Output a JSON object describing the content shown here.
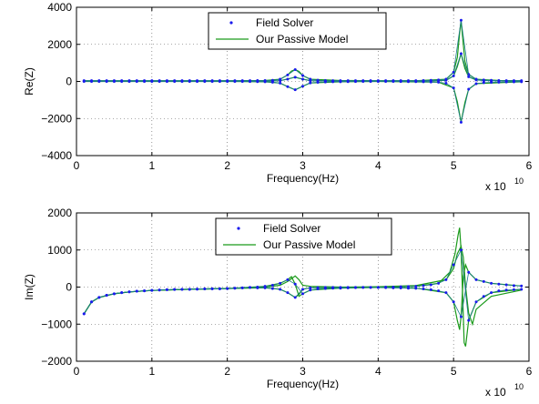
{
  "chart_data": [
    {
      "type": "line",
      "title": "",
      "xlabel": "Frequency(Hz)",
      "ylabel": "Re(Z)",
      "x_multiplier_label": "x 10",
      "x_multiplier_exp": "10",
      "xlim": [
        0,
        6
      ],
      "ylim": [
        -4000,
        4000
      ],
      "xticks": [
        "0",
        "1",
        "2",
        "3",
        "4",
        "5",
        "6"
      ],
      "yticks": [
        "−4000",
        "−2000",
        "0",
        "2000",
        "4000"
      ],
      "grid": true,
      "legend_position": "top-center",
      "legend": [
        "Field Solver",
        "Our Passive Model"
      ],
      "series": [
        {
          "name": "Our Passive Model",
          "color": "#1a9a1a",
          "x": [
            0.1,
            0.5,
            1,
            1.5,
            2,
            2.5,
            2.7,
            2.8,
            2.85,
            2.9,
            2.95,
            3.0,
            3.1,
            3.5,
            4,
            4.5,
            4.9,
            5.0,
            5.05,
            5.08,
            5.1,
            5.12,
            5.15,
            5.2,
            5.3,
            5.6,
            5.9
          ],
          "y": [
            40,
            40,
            40,
            40,
            40,
            50,
            120,
            350,
            560,
            640,
            540,
            320,
            120,
            50,
            40,
            40,
            120,
            500,
            1300,
            2600,
            3300,
            2400,
            1100,
            380,
            120,
            50,
            40
          ]
        },
        {
          "name": "",
          "color": "#1a9a1a",
          "x": [
            0.1,
            1,
            2,
            2.5,
            2.7,
            2.8,
            2.9,
            3.0,
            3.1,
            3.5,
            4,
            4.8,
            5.0,
            5.05,
            5.1,
            5.15,
            5.2,
            5.3,
            5.9
          ],
          "y": [
            0,
            0,
            0,
            -20,
            -90,
            -280,
            -450,
            -260,
            -80,
            -20,
            0,
            -40,
            -350,
            -1100,
            -2200,
            -1150,
            -420,
            -120,
            -20
          ]
        },
        {
          "name": "",
          "color": "#1a9a1a",
          "x": [
            0.1,
            1,
            2,
            2.7,
            2.85,
            2.9,
            2.95,
            3.1,
            4,
            4.9,
            5.0,
            5.05,
            5.1,
            5.15,
            5.2,
            5.3,
            5.9
          ],
          "y": [
            10,
            10,
            10,
            40,
            180,
            230,
            170,
            40,
            10,
            60,
            300,
            800,
            1500,
            700,
            250,
            80,
            10
          ]
        },
        {
          "name": "Field Solver",
          "color": "#1a1aee",
          "x": [
            0.1,
            0.2,
            0.3,
            0.4,
            0.5,
            0.6,
            0.7,
            0.8,
            0.9,
            1.0,
            1.1,
            1.2,
            1.3,
            1.4,
            1.5,
            1.6,
            1.7,
            1.8,
            1.9,
            2.0,
            2.1,
            2.2,
            2.3,
            2.4,
            2.5,
            2.6,
            2.7,
            2.8,
            2.9,
            3.0,
            3.1,
            3.2,
            3.3,
            3.4,
            3.5,
            3.6,
            3.7,
            3.8,
            3.9,
            4.0,
            4.1,
            4.2,
            4.3,
            4.4,
            4.5,
            4.6,
            4.7,
            4.8,
            4.9,
            5.0,
            5.1,
            5.2,
            5.3,
            5.4,
            5.5,
            5.6,
            5.7,
            5.8,
            5.9
          ],
          "y": [
            40,
            40,
            40,
            40,
            40,
            40,
            40,
            40,
            40,
            40,
            40,
            40,
            40,
            40,
            40,
            40,
            40,
            40,
            40,
            40,
            40,
            45,
            45,
            50,
            50,
            60,
            120,
            350,
            640,
            320,
            120,
            70,
            50,
            45,
            45,
            40,
            40,
            40,
            40,
            40,
            40,
            40,
            40,
            40,
            40,
            50,
            60,
            80,
            120,
            500,
            3300,
            380,
            120,
            80,
            60,
            50,
            45,
            40,
            40
          ]
        },
        {
          "name": "",
          "color": "#1a1aee",
          "x": [
            0.1,
            0.2,
            0.3,
            0.4,
            0.5,
            0.6,
            0.7,
            0.8,
            0.9,
            1.0,
            1.1,
            1.2,
            1.3,
            1.4,
            1.5,
            1.6,
            1.7,
            1.8,
            1.9,
            2.0,
            2.1,
            2.2,
            2.3,
            2.4,
            2.5,
            2.6,
            2.7,
            2.8,
            2.9,
            3.0,
            3.1,
            3.2,
            3.3,
            3.4,
            3.5,
            3.6,
            3.7,
            3.8,
            3.9,
            4.0,
            4.1,
            4.2,
            4.3,
            4.4,
            4.5,
            4.6,
            4.7,
            4.8,
            4.9,
            5.0,
            5.1,
            5.2,
            5.3,
            5.4,
            5.5,
            5.6,
            5.7,
            5.8,
            5.9
          ],
          "y": [
            0,
            0,
            0,
            0,
            0,
            0,
            0,
            0,
            0,
            0,
            0,
            0,
            0,
            0,
            0,
            0,
            0,
            0,
            0,
            0,
            0,
            0,
            -5,
            -10,
            -20,
            -40,
            -90,
            -280,
            -450,
            -260,
            -80,
            -50,
            -30,
            -20,
            -20,
            -10,
            -5,
            0,
            0,
            0,
            0,
            0,
            -5,
            -10,
            -15,
            -20,
            -30,
            -40,
            -100,
            -350,
            -2200,
            -420,
            -120,
            -70,
            -50,
            -40,
            -30,
            -25,
            -20
          ]
        },
        {
          "name": "",
          "color": "#1a1aee",
          "x": [
            0.1,
            0.2,
            0.3,
            0.4,
            0.5,
            0.6,
            0.7,
            0.8,
            0.9,
            1.0,
            1.1,
            1.2,
            1.3,
            1.4,
            1.5,
            1.6,
            1.7,
            1.8,
            1.9,
            2.0,
            2.1,
            2.2,
            2.3,
            2.4,
            2.5,
            2.6,
            2.7,
            2.8,
            2.9,
            3.0,
            3.1,
            3.2,
            3.3,
            3.4,
            3.5,
            3.6,
            3.7,
            3.8,
            3.9,
            4.0,
            4.1,
            4.2,
            4.3,
            4.4,
            4.5,
            4.6,
            4.7,
            4.8,
            4.9,
            5.0,
            5.1,
            5.2,
            5.3,
            5.4,
            5.5,
            5.6,
            5.7,
            5.8,
            5.9
          ],
          "y": [
            10,
            10,
            10,
            10,
            10,
            10,
            10,
            10,
            10,
            10,
            10,
            10,
            10,
            10,
            10,
            10,
            10,
            10,
            10,
            10,
            10,
            10,
            15,
            15,
            20,
            25,
            40,
            120,
            230,
            120,
            40,
            25,
            20,
            15,
            15,
            10,
            10,
            10,
            10,
            10,
            10,
            10,
            10,
            15,
            15,
            20,
            25,
            35,
            60,
            300,
            1500,
            250,
            80,
            45,
            30,
            20,
            15,
            12,
            10
          ]
        }
      ]
    },
    {
      "type": "line",
      "title": "",
      "xlabel": "Frequency(Hz)",
      "ylabel": "Im(Z)",
      "x_multiplier_label": "x 10",
      "x_multiplier_exp": "10",
      "xlim": [
        0,
        6
      ],
      "ylim": [
        -2000,
        2000
      ],
      "xticks": [
        "0",
        "1",
        "2",
        "3",
        "4",
        "5",
        "6"
      ],
      "yticks": [
        "−2000",
        "−1000",
        "0",
        "1000",
        "2000"
      ],
      "grid": true,
      "legend_position": "top-center",
      "legend": [
        "Field Solver",
        "Our Passive Model"
      ],
      "series": [
        {
          "name": "Our Passive Model",
          "color": "#1a9a1a",
          "x": [
            0.1,
            0.2,
            0.3,
            0.5,
            0.7,
            1,
            1.5,
            2,
            2.5,
            2.7,
            2.8,
            2.85,
            2.9,
            2.95,
            3.0,
            3.1,
            3.5,
            4,
            4.5,
            4.8,
            4.95,
            5.02,
            5.06,
            5.08,
            5.1,
            5.12,
            5.14,
            5.16,
            5.2,
            5.3,
            5.5,
            5.9
          ],
          "y": [
            -720,
            -400,
            -280,
            -180,
            -130,
            -90,
            -60,
            -40,
            20,
            100,
            200,
            280,
            80,
            -250,
            -180,
            -80,
            -30,
            -10,
            20,
            100,
            400,
            900,
            1400,
            1600,
            1000,
            -200,
            -1500,
            -1600,
            -900,
            -400,
            -150,
            -60
          ]
        },
        {
          "name": "",
          "color": "#1a9a1a",
          "x": [
            0.1,
            0.2,
            0.3,
            0.5,
            0.7,
            1,
            1.5,
            2,
            2.5,
            2.7,
            2.8,
            2.9,
            2.95,
            3.0,
            3.1,
            3.5,
            4,
            4.5,
            4.9,
            5.0,
            5.05,
            5.1,
            5.13,
            5.16,
            5.2,
            5.25,
            5.3,
            5.5,
            5.9
          ],
          "y": [
            -720,
            -400,
            -280,
            -180,
            -130,
            -90,
            -60,
            -40,
            0,
            50,
            150,
            300,
            200,
            50,
            20,
            0,
            10,
            40,
            200,
            500,
            900,
            1100,
            800,
            0,
            -700,
            -1000,
            -600,
            -250,
            -80
          ]
        },
        {
          "name": "",
          "color": "#1a9a1a",
          "x": [
            0.1,
            0.2,
            0.3,
            0.5,
            0.7,
            1,
            1.5,
            2,
            2.5,
            2.7,
            2.8,
            2.9,
            2.95,
            3.0,
            3.1,
            3.5,
            4,
            4.5,
            4.9,
            5.0,
            5.05,
            5.08,
            5.1,
            5.13,
            5.16,
            5.2,
            5.3,
            5.5,
            5.9
          ],
          "y": [
            -720,
            -400,
            -280,
            -180,
            -130,
            -90,
            -60,
            -40,
            -20,
            -60,
            -150,
            -280,
            -200,
            -60,
            -20,
            -10,
            -10,
            -30,
            -150,
            -400,
            -900,
            -1150,
            -800,
            300,
            600,
            400,
            200,
            100,
            30
          ]
        },
        {
          "name": "Field Solver",
          "color": "#1a1aee",
          "x": [
            0.1,
            0.2,
            0.3,
            0.4,
            0.5,
            0.6,
            0.7,
            0.8,
            0.9,
            1.0,
            1.1,
            1.2,
            1.3,
            1.4,
            1.5,
            1.6,
            1.7,
            1.8,
            1.9,
            2.0,
            2.1,
            2.2,
            2.3,
            2.4,
            2.5,
            2.6,
            2.7,
            2.8,
            2.9,
            3.0,
            3.1,
            3.2,
            3.3,
            3.4,
            3.5,
            3.6,
            3.7,
            3.8,
            3.9,
            4.0,
            4.1,
            4.2,
            4.3,
            4.4,
            4.5,
            4.6,
            4.7,
            4.8,
            4.9,
            5.0,
            5.1,
            5.2,
            5.3,
            5.4,
            5.5,
            5.6,
            5.7,
            5.8,
            5.9
          ],
          "y": [
            -720,
            -400,
            -280,
            -220,
            -180,
            -150,
            -130,
            -110,
            -100,
            -90,
            -80,
            -70,
            -65,
            -60,
            -60,
            -55,
            -50,
            -45,
            -45,
            -40,
            -30,
            -20,
            -10,
            0,
            20,
            50,
            100,
            200,
            80,
            -180,
            -80,
            -50,
            -40,
            -30,
            -30,
            -20,
            -15,
            -10,
            -10,
            -10,
            0,
            0,
            10,
            15,
            20,
            40,
            60,
            100,
            200,
            600,
            1000,
            -900,
            -400,
            -250,
            -150,
            -100,
            -80,
            -70,
            -60
          ]
        },
        {
          "name": "",
          "color": "#1a1aee",
          "x": [
            0.1,
            0.2,
            0.3,
            0.4,
            0.5,
            0.6,
            0.7,
            0.8,
            0.9,
            1.0,
            1.1,
            1.2,
            1.3,
            1.4,
            1.5,
            1.6,
            1.7,
            1.8,
            1.9,
            2.0,
            2.1,
            2.2,
            2.3,
            2.4,
            2.5,
            2.6,
            2.7,
            2.8,
            2.9,
            3.0,
            3.1,
            3.2,
            3.3,
            3.4,
            3.5,
            3.6,
            3.7,
            3.8,
            3.9,
            4.0,
            4.1,
            4.2,
            4.3,
            4.4,
            4.5,
            4.6,
            4.7,
            4.8,
            4.9,
            5.0,
            5.1,
            5.2,
            5.3,
            5.4,
            5.5,
            5.6,
            5.7,
            5.8,
            5.9
          ],
          "y": [
            -720,
            -400,
            -280,
            -220,
            -180,
            -150,
            -130,
            -110,
            -100,
            -90,
            -80,
            -70,
            -65,
            -60,
            -60,
            -55,
            -50,
            -45,
            -45,
            -40,
            -30,
            -20,
            -10,
            -20,
            -20,
            -40,
            -60,
            -150,
            -280,
            -60,
            -20,
            -15,
            -10,
            -10,
            -10,
            -10,
            -10,
            -10,
            -10,
            -10,
            -15,
            -20,
            -25,
            -30,
            -35,
            -50,
            -70,
            -100,
            -150,
            -400,
            -800,
            400,
            200,
            150,
            100,
            80,
            60,
            40,
            30
          ]
        }
      ]
    }
  ]
}
